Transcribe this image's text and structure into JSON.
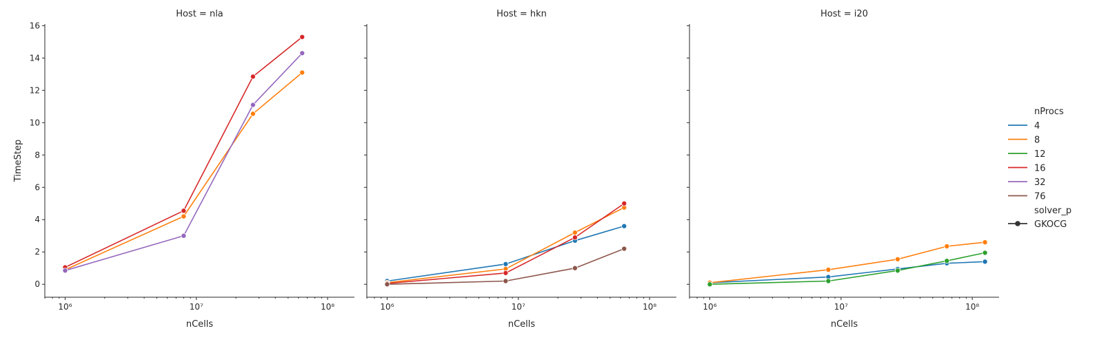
{
  "chart_data": [
    {
      "type": "line",
      "title": "Host = nla",
      "xlabel": "nCells",
      "ylabel": "TimeStep",
      "xscale": "log",
      "xlim": [
        700000,
        160000000
      ],
      "ylim": [
        -0.8,
        16.1
      ],
      "x_ticks": [
        1000000,
        10000000,
        100000000
      ],
      "x_tick_labels": [
        "10⁶",
        "10⁷",
        "10⁸"
      ],
      "y_ticks": [
        0,
        2,
        4,
        6,
        8,
        10,
        12,
        14,
        16
      ],
      "y_tick_labels": [
        "0",
        "2",
        "4",
        "6",
        "8",
        "10",
        "12",
        "14",
        "16"
      ],
      "series": [
        {
          "name": "8",
          "color": "#ff7f0e",
          "x": [
            1000000,
            8000000,
            27000000,
            64000000
          ],
          "y": [
            0.9,
            4.2,
            10.55,
            13.1
          ]
        },
        {
          "name": "16",
          "color": "#d62728",
          "x": [
            1000000,
            8000000,
            27000000,
            64000000
          ],
          "y": [
            1.05,
            4.55,
            12.85,
            15.3
          ]
        },
        {
          "name": "32",
          "color": "#9467bd",
          "x": [
            1000000,
            8000000,
            27000000,
            64000000
          ],
          "y": [
            0.85,
            3.0,
            11.1,
            14.3
          ]
        }
      ]
    },
    {
      "type": "line",
      "title": "Host = hkn",
      "xlabel": "nCells",
      "ylabel": "",
      "xscale": "log",
      "xlim": [
        700000,
        160000000
      ],
      "ylim": [
        -0.8,
        16.1
      ],
      "x_ticks": [
        1000000,
        10000000,
        100000000
      ],
      "x_tick_labels": [
        "10⁶",
        "10⁷",
        "10⁸"
      ],
      "y_ticks": [
        0,
        2,
        4,
        6,
        8,
        10,
        12,
        14,
        16
      ],
      "y_tick_labels": [],
      "series": [
        {
          "name": "4",
          "color": "#1f77b4",
          "x": [
            1000000,
            8000000,
            27000000,
            64000000
          ],
          "y": [
            0.2,
            1.25,
            2.7,
            3.6
          ]
        },
        {
          "name": "8",
          "color": "#ff7f0e",
          "x": [
            1000000,
            8000000,
            27000000,
            64000000
          ],
          "y": [
            0.1,
            0.95,
            3.2,
            4.75
          ]
        },
        {
          "name": "16",
          "color": "#d62728",
          "x": [
            1000000,
            8000000,
            27000000,
            64000000
          ],
          "y": [
            0.05,
            0.7,
            2.9,
            5.0
          ]
        },
        {
          "name": "76",
          "color": "#8c564b",
          "x": [
            1000000,
            8000000,
            27000000,
            64000000
          ],
          "y": [
            0.0,
            0.2,
            1.0,
            2.2
          ]
        }
      ]
    },
    {
      "type": "line",
      "title": "Host = i20",
      "xlabel": "nCells",
      "ylabel": "",
      "xscale": "log",
      "xlim": [
        700000,
        160000000
      ],
      "ylim": [
        -0.8,
        16.1
      ],
      "x_ticks": [
        1000000,
        10000000,
        100000000
      ],
      "x_tick_labels": [
        "10⁶",
        "10⁷",
        "10⁸"
      ],
      "y_ticks": [
        0,
        2,
        4,
        6,
        8,
        10,
        12,
        14,
        16
      ],
      "y_tick_labels": [],
      "series": [
        {
          "name": "4",
          "color": "#1f77b4",
          "x": [
            1000000,
            8000000,
            27000000,
            64000000,
            125000000
          ],
          "y": [
            0.1,
            0.45,
            0.95,
            1.3,
            1.4
          ]
        },
        {
          "name": "8",
          "color": "#ff7f0e",
          "x": [
            1000000,
            8000000,
            27000000,
            64000000,
            125000000
          ],
          "y": [
            0.1,
            0.9,
            1.55,
            2.35,
            2.6
          ]
        },
        {
          "name": "12",
          "color": "#2ca02c",
          "x": [
            1000000,
            8000000,
            27000000,
            64000000,
            125000000
          ],
          "y": [
            0.0,
            0.2,
            0.85,
            1.45,
            1.95
          ]
        }
      ]
    }
  ],
  "legend": {
    "title": "nProcs",
    "placement": "right",
    "entries": [
      {
        "label": "4",
        "color": "#1f77b4"
      },
      {
        "label": "8",
        "color": "#ff7f0e"
      },
      {
        "label": "12",
        "color": "#2ca02c"
      },
      {
        "label": "16",
        "color": "#d62728"
      },
      {
        "label": "32",
        "color": "#9467bd"
      },
      {
        "label": "76",
        "color": "#8c564b"
      }
    ],
    "style_title": "solver_p",
    "style_entries": [
      {
        "label": "GKOCG",
        "color": "#333333"
      }
    ]
  }
}
